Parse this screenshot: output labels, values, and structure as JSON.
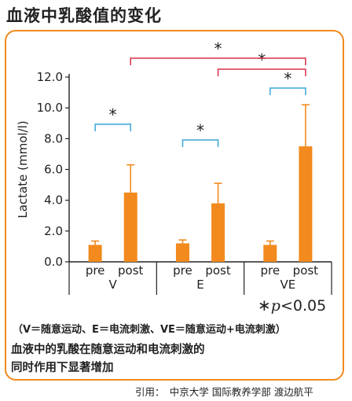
{
  "title": "血液中乳酸值的变化",
  "chart_data": {
    "type": "bar",
    "ylabel": "Lactate (mmol/l)",
    "ylim": [
      0,
      12
    ],
    "yticks": [
      "0.0",
      "2.0",
      "4.0",
      "6.0",
      "8.0",
      "10.0",
      "12.0"
    ],
    "yticks_values": [
      0,
      2,
      4,
      6,
      8,
      10,
      12
    ],
    "groups": [
      {
        "name": "V",
        "bars": [
          {
            "label": "pre",
            "value": 1.1,
            "error": 0.25
          },
          {
            "label": "post",
            "value": 4.5,
            "error": 1.8
          }
        ]
      },
      {
        "name": "E",
        "bars": [
          {
            "label": "pre",
            "value": 1.2,
            "error": 0.22
          },
          {
            "label": "post",
            "value": 3.8,
            "error": 1.3
          }
        ]
      },
      {
        "name": "VE",
        "bars": [
          {
            "label": "pre",
            "value": 1.1,
            "error": 0.25
          },
          {
            "label": "post",
            "value": 7.5,
            "error": 2.7
          }
        ]
      }
    ],
    "bar_color": "#f28a1e",
    "significance": [
      {
        "from": "V.pre",
        "to": "V.post",
        "label": "*",
        "color": "#3aa6d8"
      },
      {
        "from": "E.pre",
        "to": "E.post",
        "label": "*",
        "color": "#3aa6d8"
      },
      {
        "from": "VE.pre",
        "to": "VE.post",
        "label": "*",
        "color": "#3aa6d8"
      },
      {
        "from": "E.post",
        "to": "VE.post",
        "label": "*",
        "color": "#d9304a"
      },
      {
        "from": "V.post",
        "to": "VE.post",
        "label": "*",
        "color": "#d9304a"
      }
    ]
  },
  "significance_note": {
    "star": "∗",
    "p": "p",
    "text": "<0.05"
  },
  "abbreviations": "（V＝随意运动、E＝电流刺激、VE＝随意运动+电流刺激）",
  "conclusion_line1": "血液中的乳酸在随意运动和电流刺激的",
  "conclusion_line2": "同时作用下显著增加",
  "citation": "引用：　中京大学 国际教养学部 渡边航平",
  "colors": {
    "frame": "#f28a1e",
    "bar": "#f28a1e",
    "bracket_blue": "#3aa6d8",
    "bracket_red": "#d9304a"
  }
}
